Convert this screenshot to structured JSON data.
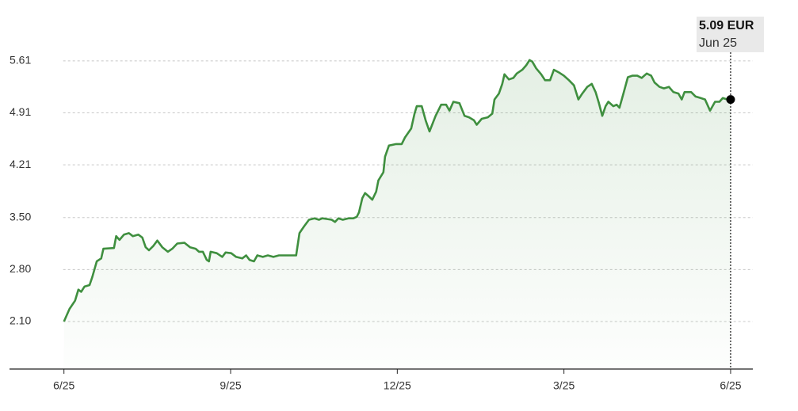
{
  "chart_data": {
    "type": "line",
    "x": [
      0,
      0.1,
      0.2,
      0.26,
      0.31,
      0.37,
      0.46,
      0.51,
      0.59,
      0.67,
      0.71,
      0.9,
      0.94,
      1.0,
      1.08,
      1.17,
      1.24,
      1.34,
      1.41,
      1.47,
      1.53,
      1.61,
      1.68,
      1.77,
      1.87,
      1.95,
      2.04,
      2.17,
      2.27,
      2.37,
      2.43,
      2.5,
      2.57,
      2.61,
      2.64,
      2.75,
      2.85,
      2.91,
      3.01,
      3.1,
      3.21,
      3.28,
      3.34,
      3.42,
      3.48,
      3.58,
      3.67,
      3.77,
      3.87,
      4.12,
      4.18,
      4.24,
      4.32,
      4.41,
      4.51,
      4.59,
      4.65,
      4.74,
      4.82,
      4.88,
      4.94,
      5.02,
      5.12,
      5.21,
      5.27,
      5.31,
      5.37,
      5.42,
      5.48,
      5.55,
      5.62,
      5.66,
      5.75,
      5.78,
      5.85,
      5.98,
      6.08,
      6.14,
      6.25,
      6.31,
      6.35,
      6.44,
      6.51,
      6.58,
      6.69,
      6.79,
      6.88,
      6.94,
      7.01,
      7.12,
      7.21,
      7.29,
      7.38,
      7.43,
      7.52,
      7.63,
      7.71,
      7.75,
      7.83,
      7.89,
      7.93,
      8.01,
      8.09,
      8.15,
      8.25,
      8.32,
      8.38,
      8.43,
      8.5,
      8.59,
      8.66,
      8.75,
      8.82,
      8.92,
      9.0,
      9.09,
      9.18,
      9.26,
      9.33,
      9.42,
      9.5,
      9.57,
      9.63,
      9.69,
      9.75,
      9.8,
      9.89,
      9.95,
      10.0,
      10.07,
      10.15,
      10.23,
      10.32,
      10.4,
      10.49,
      10.57,
      10.63,
      10.72,
      10.8,
      10.89,
      10.97,
      11.06,
      11.12,
      11.17,
      11.29,
      11.37,
      11.46,
      11.54,
      11.63,
      11.72,
      11.8,
      11.86,
      11.94,
      12.0
    ],
    "series": [
      {
        "color": "#3f8f3f",
        "values": [
          2.1,
          2.27,
          2.38,
          2.53,
          2.5,
          2.57,
          2.59,
          2.7,
          2.91,
          2.95,
          3.08,
          3.09,
          3.25,
          3.2,
          3.27,
          3.29,
          3.25,
          3.27,
          3.23,
          3.1,
          3.06,
          3.12,
          3.19,
          3.1,
          3.04,
          3.08,
          3.15,
          3.16,
          3.1,
          3.08,
          3.04,
          3.04,
          2.93,
          2.91,
          3.04,
          3.02,
          2.97,
          3.03,
          3.02,
          2.97,
          2.95,
          2.99,
          2.93,
          2.91,
          2.99,
          2.97,
          2.99,
          2.97,
          2.99,
          2.99,
          2.99,
          3.29,
          3.38,
          3.47,
          3.49,
          3.47,
          3.49,
          3.48,
          3.47,
          3.44,
          3.49,
          3.47,
          3.49,
          3.49,
          3.51,
          3.57,
          3.76,
          3.83,
          3.79,
          3.74,
          3.85,
          4.0,
          4.11,
          4.32,
          4.47,
          4.49,
          4.49,
          4.58,
          4.7,
          4.9,
          5.0,
          5.0,
          4.81,
          4.66,
          4.87,
          5.02,
          5.02,
          4.94,
          5.06,
          5.04,
          4.87,
          4.85,
          4.81,
          4.75,
          4.83,
          4.85,
          4.9,
          5.09,
          5.17,
          5.3,
          5.43,
          5.36,
          5.38,
          5.44,
          5.49,
          5.55,
          5.62,
          5.6,
          5.51,
          5.43,
          5.35,
          5.35,
          5.49,
          5.45,
          5.41,
          5.35,
          5.28,
          5.09,
          5.17,
          5.26,
          5.3,
          5.19,
          5.04,
          4.87,
          5.0,
          5.06,
          5.0,
          5.02,
          4.98,
          5.17,
          5.39,
          5.41,
          5.41,
          5.38,
          5.44,
          5.41,
          5.32,
          5.26,
          5.24,
          5.26,
          5.19,
          5.17,
          5.09,
          5.19,
          5.19,
          5.13,
          5.11,
          5.09,
          4.94,
          5.06,
          5.06,
          5.11,
          5.09,
          5.09
        ]
      }
    ],
    "xlim": [
      -0.98,
      12.4
    ],
    "xticks": [
      {
        "value": 0,
        "label": "6/25"
      },
      {
        "value": 3,
        "label": "9/25"
      },
      {
        "value": 6,
        "label": "12/25"
      },
      {
        "value": 9,
        "label": "3/25"
      },
      {
        "value": 12,
        "label": "6/25"
      }
    ],
    "ylim": [
      1.46,
      6.11
    ],
    "yticks": [
      {
        "value": 2.1,
        "label": "2.10"
      },
      {
        "value": 2.8,
        "label": "2.80"
      },
      {
        "value": 3.5,
        "label": "3.50"
      },
      4.21,
      4.91,
      5.61
    ],
    "grid": true,
    "tooltip": {
      "value_label": "5.09 EUR",
      "date": "Jun 25"
    }
  }
}
